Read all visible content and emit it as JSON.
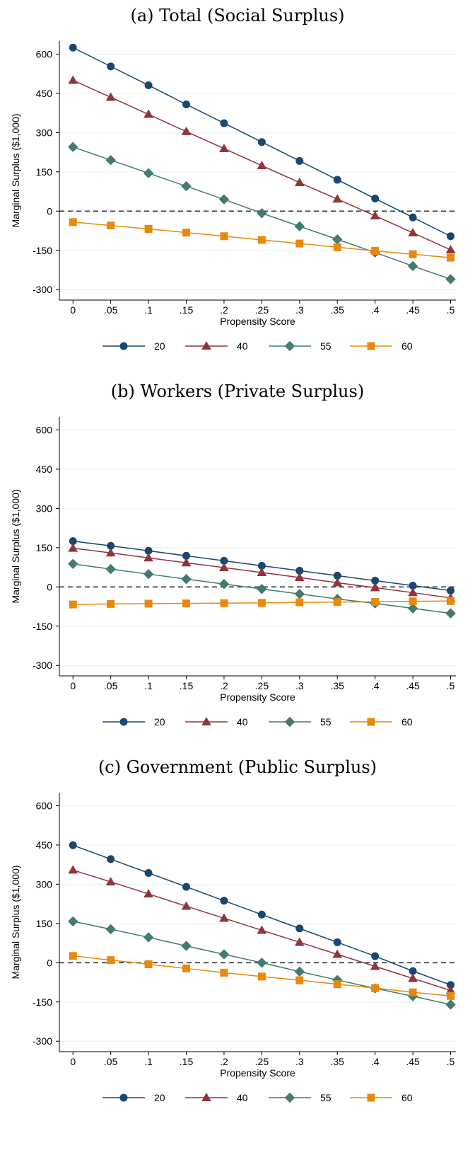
{
  "chart_data": [
    {
      "type": "line",
      "title": "(a) Total (Social Surplus)",
      "x_label": "Propensity Score",
      "y_label": "Marginal Surplus ($1,000)",
      "x": [
        0,
        0.05,
        0.1,
        0.15,
        0.2,
        0.25,
        0.3,
        0.35,
        0.4,
        0.45,
        0.5
      ],
      "xlim": [
        -0.018,
        0.507
      ],
      "xticks": [
        0,
        {
          "value": 0.05,
          "label": ".05"
        },
        {
          "value": 0.1,
          "label": ".1"
        },
        {
          "value": 0.15,
          "label": ".15"
        },
        {
          "value": 0.2,
          "label": ".2"
        },
        {
          "value": 0.25,
          "label": ".25"
        },
        {
          "value": 0.3,
          "label": ".3"
        },
        {
          "value": 0.35,
          "label": ".35"
        },
        {
          "value": 0.4,
          "label": ".4"
        },
        {
          "value": 0.45,
          "label": ".45"
        },
        {
          "value": 0.5,
          "label": ".5"
        }
      ],
      "ylim": [
        -340,
        650
      ],
      "yticks": [
        -300,
        -150,
        0,
        150,
        300,
        450,
        600
      ],
      "grid": true,
      "ref_line": 0,
      "series": [
        {
          "name": "20",
          "color": "#1a476f",
          "marker": "circle",
          "values": [
            625,
            553,
            481,
            408,
            336,
            264,
            192,
            120,
            48,
            -24,
            -96
          ]
        },
        {
          "name": "40",
          "color": "#90353b",
          "marker": "triangle",
          "values": [
            500,
            435,
            370,
            304,
            239,
            174,
            109,
            46,
            -18,
            -83,
            -148
          ]
        },
        {
          "name": "55",
          "color": "#437a72",
          "marker": "diamond",
          "values": [
            245,
            195,
            145,
            95,
            45,
            -8,
            -58,
            -108,
            -158,
            -210,
            -260
          ]
        },
        {
          "name": "60",
          "color": "#e8890c",
          "marker": "square",
          "values": [
            -42,
            -55,
            -68,
            -82,
            -96,
            -110,
            -124,
            -138,
            -152,
            -165,
            -178
          ]
        }
      ]
    },
    {
      "type": "line",
      "title": "(b) Workers (Private Surplus)",
      "x_label": "Propensity Score",
      "y_label": "Marginal Surplus ($1,000)",
      "x": [
        0,
        0.05,
        0.1,
        0.15,
        0.2,
        0.25,
        0.3,
        0.35,
        0.4,
        0.45,
        0.5
      ],
      "xlim": [
        -0.018,
        0.507
      ],
      "xticks": [
        0,
        {
          "value": 0.05,
          "label": ".05"
        },
        {
          "value": 0.1,
          "label": ".1"
        },
        {
          "value": 0.15,
          "label": ".15"
        },
        {
          "value": 0.2,
          "label": ".2"
        },
        {
          "value": 0.25,
          "label": ".25"
        },
        {
          "value": 0.3,
          "label": ".3"
        },
        {
          "value": 0.35,
          "label": ".35"
        },
        {
          "value": 0.4,
          "label": ".4"
        },
        {
          "value": 0.45,
          "label": ".45"
        },
        {
          "value": 0.5,
          "label": ".5"
        }
      ],
      "ylim": [
        -340,
        650
      ],
      "yticks": [
        -300,
        -150,
        0,
        150,
        300,
        450,
        600
      ],
      "grid": true,
      "ref_line": 0,
      "series": [
        {
          "name": "20",
          "color": "#1a476f",
          "marker": "circle",
          "values": [
            175,
            157,
            138,
            119,
            100,
            81,
            62,
            43,
            24,
            5,
            -14
          ]
        },
        {
          "name": "40",
          "color": "#90353b",
          "marker": "triangle",
          "values": [
            148,
            130,
            111,
            92,
            74,
            55,
            36,
            16,
            -3,
            -22,
            -42
          ]
        },
        {
          "name": "55",
          "color": "#437a72",
          "marker": "diamond",
          "values": [
            88,
            68,
            49,
            30,
            11,
            -8,
            -27,
            -46,
            -63,
            -82,
            -101
          ]
        },
        {
          "name": "60",
          "color": "#e8890c",
          "marker": "square",
          "values": [
            -67,
            -65,
            -64,
            -63,
            -62,
            -61,
            -59,
            -58,
            -57,
            -55,
            -54
          ]
        }
      ]
    },
    {
      "type": "line",
      "title": "(c) Government (Public Surplus)",
      "x_label": "Propensity Score",
      "y_label": "Marginal Surplus ($1,000)",
      "x": [
        0,
        0.05,
        0.1,
        0.15,
        0.2,
        0.25,
        0.3,
        0.35,
        0.4,
        0.45,
        0.5
      ],
      "xlim": [
        -0.018,
        0.507
      ],
      "xticks": [
        0,
        {
          "value": 0.05,
          "label": ".05"
        },
        {
          "value": 0.1,
          "label": ".1"
        },
        {
          "value": 0.15,
          "label": ".15"
        },
        {
          "value": 0.2,
          "label": ".2"
        },
        {
          "value": 0.25,
          "label": ".25"
        },
        {
          "value": 0.3,
          "label": ".3"
        },
        {
          "value": 0.35,
          "label": ".35"
        },
        {
          "value": 0.4,
          "label": ".4"
        },
        {
          "value": 0.45,
          "label": ".45"
        },
        {
          "value": 0.5,
          "label": ".5"
        }
      ],
      "ylim": [
        -340,
        650
      ],
      "yticks": [
        -300,
        -150,
        0,
        150,
        300,
        450,
        600
      ],
      "grid": true,
      "ref_line": 0,
      "series": [
        {
          "name": "20",
          "color": "#1a476f",
          "marker": "circle",
          "values": [
            449,
            396,
            343,
            290,
            237,
            184,
            131,
            78,
            25,
            -32,
            -85
          ]
        },
        {
          "name": "40",
          "color": "#90353b",
          "marker": "triangle",
          "values": [
            354,
            309,
            263,
            216,
            170,
            124,
            78,
            32,
            -14,
            -60,
            -106
          ]
        },
        {
          "name": "55",
          "color": "#437a72",
          "marker": "diamond",
          "values": [
            158,
            128,
            97,
            64,
            32,
            0,
            -34,
            -66,
            -98,
            -128,
            -160
          ]
        },
        {
          "name": "60",
          "color": "#e8890c",
          "marker": "square",
          "values": [
            26,
            10,
            -6,
            -22,
            -38,
            -53,
            -67,
            -82,
            -97,
            -113,
            -127
          ]
        }
      ]
    }
  ]
}
